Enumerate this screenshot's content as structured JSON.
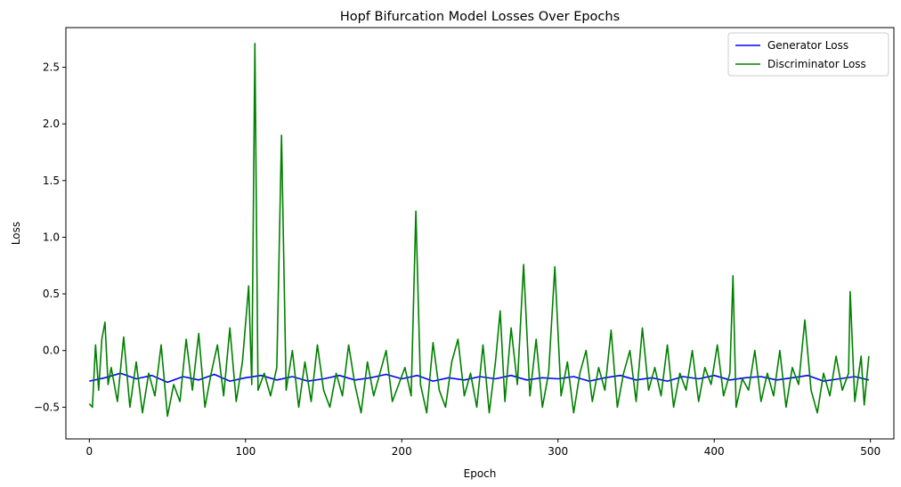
{
  "chart_data": {
    "type": "line",
    "title": "Hopf Bifurcation Model Losses Over Epochs",
    "xlabel": "Epoch",
    "ylabel": "Loss",
    "xlim": [
      -15,
      515
    ],
    "ylim": [
      -0.78,
      2.85
    ],
    "xticks": [
      0,
      100,
      200,
      300,
      400,
      500
    ],
    "xtick_labels": [
      "0",
      "100",
      "200",
      "300",
      "400",
      "500"
    ],
    "yticks": [
      -0.5,
      0.0,
      0.5,
      1.0,
      1.5,
      2.0,
      2.5
    ],
    "ytick_labels": [
      "−0.5",
      "0.0",
      "0.5",
      "1.0",
      "1.5",
      "2.0",
      "2.5"
    ],
    "grid": false,
    "legend_position": "top-right",
    "series": [
      {
        "name": "Generator Loss",
        "color": "#0000ff",
        "x": [
          0,
          10,
          20,
          30,
          40,
          50,
          60,
          70,
          80,
          90,
          100,
          110,
          120,
          130,
          140,
          150,
          160,
          170,
          180,
          190,
          200,
          210,
          220,
          230,
          240,
          250,
          260,
          270,
          280,
          290,
          300,
          310,
          320,
          330,
          340,
          350,
          360,
          370,
          380,
          390,
          400,
          410,
          420,
          430,
          440,
          450,
          460,
          470,
          480,
          490,
          499
        ],
        "y": [
          -0.27,
          -0.24,
          -0.2,
          -0.25,
          -0.22,
          -0.28,
          -0.23,
          -0.26,
          -0.21,
          -0.27,
          -0.24,
          -0.22,
          -0.26,
          -0.23,
          -0.27,
          -0.25,
          -0.22,
          -0.26,
          -0.24,
          -0.21,
          -0.25,
          -0.22,
          -0.27,
          -0.24,
          -0.26,
          -0.23,
          -0.25,
          -0.22,
          -0.26,
          -0.24,
          -0.25,
          -0.23,
          -0.27,
          -0.24,
          -0.22,
          -0.26,
          -0.24,
          -0.27,
          -0.23,
          -0.25,
          -0.22,
          -0.26,
          -0.24,
          -0.23,
          -0.26,
          -0.24,
          -0.22,
          -0.27,
          -0.25,
          -0.23,
          -0.26
        ]
      },
      {
        "name": "Discriminator Loss",
        "color": "#008000",
        "x": [
          0,
          2,
          4,
          6,
          8,
          10,
          12,
          14,
          18,
          22,
          26,
          30,
          34,
          38,
          42,
          46,
          50,
          54,
          58,
          62,
          66,
          70,
          74,
          78,
          82,
          86,
          90,
          94,
          98,
          102,
          104,
          106,
          108,
          112,
          116,
          120,
          123,
          126,
          130,
          134,
          138,
          142,
          146,
          150,
          154,
          158,
          162,
          166,
          170,
          174,
          178,
          182,
          186,
          190,
          194,
          198,
          202,
          206,
          209,
          212,
          216,
          220,
          224,
          228,
          232,
          236,
          240,
          244,
          248,
          252,
          256,
          260,
          263,
          266,
          270,
          274,
          278,
          282,
          286,
          290,
          294,
          298,
          302,
          306,
          310,
          314,
          318,
          322,
          326,
          330,
          334,
          338,
          342,
          346,
          350,
          354,
          358,
          362,
          366,
          370,
          374,
          378,
          382,
          386,
          390,
          394,
          398,
          402,
          406,
          410,
          412,
          414,
          418,
          422,
          426,
          430,
          434,
          438,
          442,
          446,
          450,
          454,
          458,
          462,
          466,
          470,
          474,
          478,
          482,
          486,
          487,
          490,
          494,
          496,
          499
        ],
        "y": [
          -0.47,
          -0.5,
          0.05,
          -0.35,
          0.1,
          0.25,
          -0.3,
          -0.15,
          -0.45,
          0.12,
          -0.5,
          -0.1,
          -0.55,
          -0.2,
          -0.4,
          0.05,
          -0.58,
          -0.3,
          -0.45,
          0.1,
          -0.35,
          0.15,
          -0.5,
          -0.2,
          0.05,
          -0.4,
          0.2,
          -0.45,
          -0.1,
          0.57,
          -0.3,
          2.71,
          -0.35,
          -0.2,
          -0.4,
          -0.15,
          1.9,
          -0.35,
          0.0,
          -0.5,
          -0.1,
          -0.45,
          0.05,
          -0.35,
          -0.5,
          -0.2,
          -0.4,
          0.05,
          -0.3,
          -0.55,
          -0.1,
          -0.4,
          -0.2,
          0.0,
          -0.45,
          -0.3,
          -0.15,
          -0.4,
          1.23,
          -0.3,
          -0.55,
          0.07,
          -0.35,
          -0.5,
          -0.1,
          0.1,
          -0.4,
          -0.2,
          -0.5,
          0.05,
          -0.55,
          -0.1,
          0.35,
          -0.45,
          0.2,
          -0.3,
          0.76,
          -0.4,
          0.1,
          -0.5,
          -0.2,
          0.74,
          -0.4,
          -0.1,
          -0.55,
          -0.2,
          0.0,
          -0.45,
          -0.15,
          -0.35,
          0.18,
          -0.5,
          -0.2,
          0.0,
          -0.45,
          0.2,
          -0.35,
          -0.15,
          -0.4,
          0.05,
          -0.5,
          -0.2,
          -0.35,
          0.0,
          -0.45,
          -0.15,
          -0.3,
          0.05,
          -0.4,
          -0.2,
          0.66,
          -0.5,
          -0.25,
          -0.35,
          0.0,
          -0.45,
          -0.2,
          -0.4,
          0.0,
          -0.5,
          -0.15,
          -0.3,
          0.27,
          -0.35,
          -0.55,
          -0.2,
          -0.4,
          -0.05,
          -0.35,
          -0.2,
          0.52,
          -0.45,
          -0.05,
          -0.48,
          -0.05
        ]
      }
    ]
  }
}
